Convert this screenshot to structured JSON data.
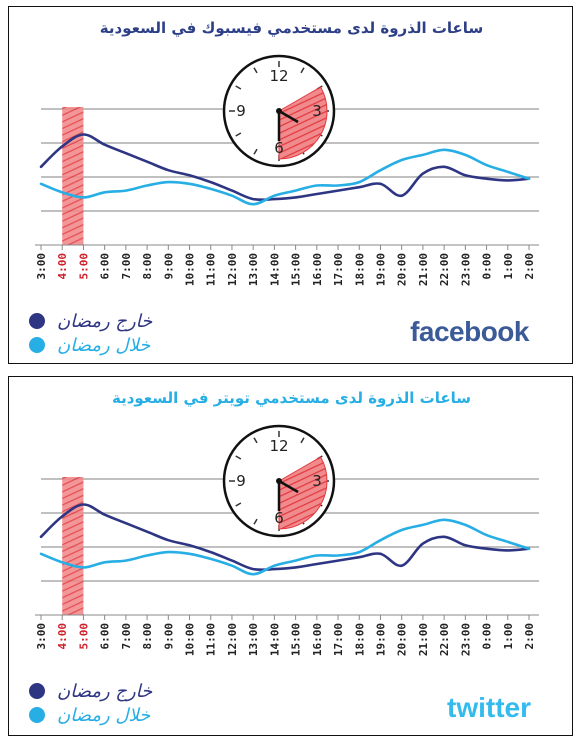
{
  "colors": {
    "outside": "#2e3583",
    "during": "#27aee4",
    "highlight": "#e23a3f",
    "grid": "#9a9a9a",
    "fb_title": "#2d3f86",
    "tw_title": "#27aee4"
  },
  "legend": {
    "outside_label": "خارج رمضان",
    "during_label": "خلال رمضان"
  },
  "chart_data": [
    {
      "type": "line",
      "title": "ساعات الذروة لدى مستخدمي فيسبوك في السعودية",
      "brand": "facebook",
      "categories": [
        "3:00",
        "4:00",
        "5:00",
        "6:00",
        "7:00",
        "8:00",
        "9:00",
        "10:00",
        "11:00",
        "12:00",
        "13:00",
        "14:00",
        "15:00",
        "16:00",
        "17:00",
        "18:00",
        "19:00",
        "20:00",
        "21:00",
        "22:00",
        "23:00",
        "0:00",
        "1:00",
        "2:00"
      ],
      "highlight_categories": [
        "4:00",
        "5:00"
      ],
      "ylim": [
        0,
        5
      ],
      "grid": true,
      "series": [
        {
          "name": "خارج رمضان",
          "color": "#2e3583",
          "values": [
            2.3,
            2.9,
            3.25,
            2.95,
            2.7,
            2.45,
            2.2,
            2.05,
            1.85,
            1.6,
            1.35,
            1.35,
            1.4,
            1.5,
            1.6,
            1.7,
            1.8,
            1.45,
            2.1,
            2.3,
            2.05,
            1.95,
            1.9,
            1.95
          ]
        },
        {
          "name": "خلال رمضان",
          "color": "#27aee4",
          "values": [
            1.8,
            1.55,
            1.4,
            1.55,
            1.6,
            1.75,
            1.85,
            1.8,
            1.65,
            1.45,
            1.2,
            1.45,
            1.6,
            1.75,
            1.75,
            1.85,
            2.2,
            2.5,
            2.65,
            2.8,
            2.65,
            2.35,
            2.15,
            1.95
          ]
        }
      ],
      "clock_numbers": [
        "12",
        "3",
        "6",
        "9"
      ]
    },
    {
      "type": "line",
      "title": "ساعات الذروة لدى مستخدمي تويتر في السعودية",
      "brand": "twitter",
      "categories": [
        "3:00",
        "4:00",
        "5:00",
        "6:00",
        "7:00",
        "8:00",
        "9:00",
        "10:00",
        "11:00",
        "12:00",
        "13:00",
        "14:00",
        "15:00",
        "16:00",
        "17:00",
        "18:00",
        "19:00",
        "20:00",
        "21:00",
        "22:00",
        "23:00",
        "0:00",
        "1:00",
        "2:00"
      ],
      "highlight_categories": [
        "4:00",
        "5:00"
      ],
      "ylim": [
        0,
        5
      ],
      "grid": true,
      "series": [
        {
          "name": "خارج رمضان",
          "color": "#2e3583",
          "values": [
            2.3,
            2.9,
            3.25,
            2.95,
            2.7,
            2.45,
            2.2,
            2.05,
            1.85,
            1.6,
            1.35,
            1.35,
            1.4,
            1.5,
            1.6,
            1.7,
            1.8,
            1.45,
            2.1,
            2.3,
            2.05,
            1.95,
            1.9,
            1.95
          ]
        },
        {
          "name": "خلال رمضان",
          "color": "#27aee4",
          "values": [
            1.8,
            1.55,
            1.4,
            1.55,
            1.6,
            1.75,
            1.85,
            1.8,
            1.65,
            1.45,
            1.2,
            1.45,
            1.6,
            1.75,
            1.75,
            1.85,
            2.2,
            2.5,
            2.65,
            2.8,
            2.65,
            2.35,
            2.15,
            1.95
          ]
        }
      ],
      "clock_numbers": [
        "12",
        "3",
        "6",
        "9"
      ]
    }
  ]
}
